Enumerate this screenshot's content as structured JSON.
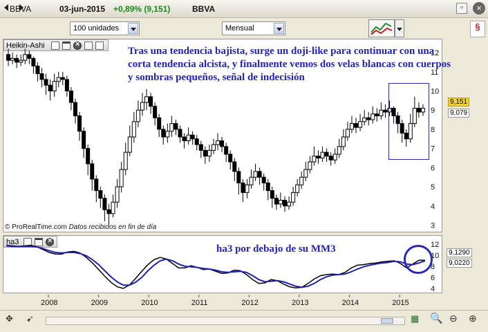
{
  "titlebar": {
    "symbol": "BBVA",
    "date": "03-jun-2015",
    "change": "+0,89% (9,151)",
    "name": "BBVA"
  },
  "toolbar": {
    "units": "100 unidades",
    "period": "Mensual"
  },
  "main_panel": {
    "title": "Heikin-Ashi",
    "annotation": "Tras una tendencia bajista, surge un doji-like para continuar con una corta tendencia alcista, y finalmente vemos dos velas blancas con cuerpos y sombras pequeños, señal de indecisión",
    "footer": "© ProRealTime.com",
    "footer_italic": "Datos recibidos en fin de día",
    "last_price": "9,151",
    "secondary_price": "9,079",
    "highlight_color": "#2a2ab4"
  },
  "lower_panel": {
    "title": "ha3",
    "annotation": "ha3 por debajo de su MM3",
    "value1": "9,1290",
    "value2": "9,0220"
  },
  "colors": {
    "up": "#ffffff",
    "down": "#000000",
    "ma": "#1f1fb0",
    "annotation": "#2222bb"
  },
  "chart_data": [
    {
      "type": "candlestick",
      "title": "Heikin-Ashi",
      "x_ticks": [
        "2008",
        "2009",
        "2010",
        "2011",
        "2012",
        "2013",
        "2014",
        "2015"
      ],
      "y_ticks": [
        "3",
        "4",
        "5",
        "6",
        "7",
        "8",
        "9",
        "10",
        "11",
        "12"
      ],
      "ylim": [
        2.8,
        12.4
      ],
      "candles": [
        [
          11.9,
          11.6,
          12.2,
          11.3
        ],
        [
          11.6,
          11.7,
          12.0,
          11.4
        ],
        [
          11.7,
          11.5,
          11.9,
          11.2
        ],
        [
          11.5,
          11.6,
          11.9,
          11.3
        ],
        [
          11.6,
          11.9,
          12.2,
          11.4
        ],
        [
          11.9,
          11.7,
          12.1,
          11.4
        ],
        [
          11.7,
          11.3,
          11.8,
          10.9
        ],
        [
          11.3,
          10.9,
          11.5,
          10.5
        ],
        [
          10.9,
          10.6,
          11.2,
          10.2
        ],
        [
          10.6,
          10.3,
          10.9,
          9.8
        ],
        [
          10.3,
          10.0,
          10.6,
          9.5
        ],
        [
          10.0,
          10.5,
          10.9,
          9.7
        ],
        [
          10.5,
          10.7,
          11.0,
          10.2
        ],
        [
          10.7,
          10.6,
          11.0,
          10.3
        ],
        [
          10.6,
          10.0,
          10.8,
          9.7
        ],
        [
          10.0,
          9.4,
          10.2,
          9.0
        ],
        [
          9.4,
          8.7,
          9.6,
          8.3
        ],
        [
          8.7,
          7.9,
          8.9,
          7.4
        ],
        [
          7.9,
          7.0,
          8.1,
          6.5
        ],
        [
          7.0,
          6.2,
          7.2,
          5.6
        ],
        [
          6.2,
          5.4,
          6.4,
          4.8
        ],
        [
          5.4,
          4.8,
          5.6,
          4.2
        ],
        [
          4.8,
          4.4,
          5.0,
          3.9
        ],
        [
          4.4,
          3.8,
          4.6,
          3.2
        ],
        [
          3.8,
          3.6,
          4.1,
          3.0
        ],
        [
          3.6,
          4.2,
          4.6,
          3.4
        ],
        [
          4.2,
          5.0,
          5.4,
          3.9
        ],
        [
          5.0,
          5.9,
          6.3,
          4.7
        ],
        [
          5.9,
          6.8,
          7.3,
          5.6
        ],
        [
          6.8,
          7.6,
          8.2,
          6.6
        ],
        [
          7.6,
          8.4,
          8.9,
          7.3
        ],
        [
          8.4,
          9.0,
          9.5,
          8.1
        ],
        [
          9.0,
          9.4,
          9.9,
          8.7
        ],
        [
          9.4,
          9.7,
          10.1,
          9.0
        ],
        [
          9.7,
          9.2,
          9.9,
          8.8
        ],
        [
          9.2,
          8.6,
          9.4,
          8.2
        ],
        [
          8.6,
          8.0,
          8.8,
          7.6
        ],
        [
          8.0,
          7.6,
          8.2,
          7.2
        ],
        [
          7.6,
          7.9,
          8.3,
          7.3
        ],
        [
          7.9,
          8.3,
          8.7,
          7.6
        ],
        [
          8.3,
          8.0,
          8.5,
          7.7
        ],
        [
          8.0,
          7.6,
          8.2,
          7.3
        ],
        [
          7.6,
          7.4,
          7.8,
          7.0
        ],
        [
          7.4,
          7.7,
          8.1,
          7.2
        ],
        [
          7.7,
          7.5,
          7.9,
          7.2
        ],
        [
          7.5,
          7.2,
          7.7,
          6.9
        ],
        [
          7.2,
          6.9,
          7.4,
          6.5
        ],
        [
          6.9,
          6.6,
          7.1,
          6.2
        ],
        [
          6.6,
          6.9,
          7.2,
          6.3
        ],
        [
          6.9,
          7.2,
          7.5,
          6.7
        ],
        [
          7.2,
          7.4,
          7.8,
          6.9
        ],
        [
          7.4,
          7.1,
          7.6,
          6.8
        ],
        [
          7.1,
          6.7,
          7.3,
          6.3
        ],
        [
          6.7,
          6.3,
          6.9,
          5.9
        ],
        [
          6.3,
          5.8,
          6.5,
          5.3
        ],
        [
          5.8,
          5.2,
          6.0,
          4.6
        ],
        [
          5.2,
          4.7,
          5.4,
          4.2
        ],
        [
          4.7,
          5.1,
          5.4,
          4.4
        ],
        [
          5.1,
          5.5,
          5.9,
          4.9
        ],
        [
          5.5,
          5.8,
          6.2,
          5.3
        ],
        [
          5.8,
          5.5,
          6.0,
          5.1
        ],
        [
          5.5,
          5.2,
          5.7,
          4.8
        ],
        [
          5.2,
          4.8,
          5.4,
          4.3
        ],
        [
          4.8,
          4.4,
          5.0,
          3.9
        ],
        [
          4.4,
          4.1,
          4.6,
          3.8
        ],
        [
          4.1,
          4.3,
          4.7,
          3.9
        ],
        [
          4.3,
          4.0,
          4.5,
          3.7
        ],
        [
          4.0,
          4.2,
          4.5,
          3.8
        ],
        [
          4.2,
          4.7,
          5.0,
          4.0
        ],
        [
          4.7,
          5.1,
          5.4,
          4.5
        ],
        [
          5.1,
          5.5,
          5.8,
          4.9
        ],
        [
          5.5,
          5.9,
          6.3,
          5.3
        ],
        [
          5.9,
          6.3,
          6.6,
          5.7
        ],
        [
          6.3,
          6.6,
          7.1,
          6.1
        ],
        [
          6.6,
          6.5,
          6.9,
          6.2
        ],
        [
          6.5,
          6.8,
          7.1,
          6.3
        ],
        [
          6.8,
          6.6,
          7.0,
          6.3
        ],
        [
          6.6,
          6.4,
          6.8,
          6.1
        ],
        [
          6.4,
          6.7,
          7.0,
          6.2
        ],
        [
          6.7,
          7.1,
          7.5,
          6.5
        ],
        [
          7.1,
          7.6,
          8.0,
          6.9
        ],
        [
          7.6,
          8.0,
          8.4,
          7.4
        ],
        [
          8.0,
          8.3,
          8.7,
          7.8
        ],
        [
          8.3,
          8.1,
          8.6,
          7.8
        ],
        [
          8.1,
          8.4,
          8.8,
          7.9
        ],
        [
          8.4,
          8.6,
          9.0,
          8.2
        ],
        [
          8.6,
          8.5,
          8.9,
          8.2
        ],
        [
          8.5,
          8.8,
          9.2,
          8.3
        ],
        [
          8.8,
          8.7,
          9.1,
          8.4
        ],
        [
          8.7,
          9.0,
          9.4,
          8.5
        ],
        [
          9.0,
          8.9,
          9.3,
          8.6
        ],
        [
          8.9,
          9.1,
          9.5,
          8.7
        ],
        [
          9.1,
          8.7,
          9.2,
          8.3
        ],
        [
          8.7,
          8.3,
          8.9,
          7.8
        ],
        [
          8.3,
          7.8,
          8.5,
          7.3
        ],
        [
          7.8,
          7.5,
          8.0,
          7.1
        ],
        [
          7.5,
          8.3,
          8.8,
          7.3
        ],
        [
          8.3,
          9.1,
          9.7,
          8.1
        ],
        [
          9.1,
          8.9,
          9.4,
          8.6
        ],
        [
          8.9,
          9.1,
          9.3,
          8.7
        ]
      ]
    },
    {
      "type": "line",
      "title": "ha3",
      "x_ticks": [
        "2008",
        "2009",
        "2010",
        "2011",
        "2012",
        "2013",
        "2014",
        "2015"
      ],
      "y_ticks": [
        "4",
        "6",
        "8",
        "10",
        "12"
      ],
      "ylim": [
        3.5,
        13
      ],
      "series": [
        {
          "values": [
            11.8,
            11.7,
            11.6,
            11.7,
            11.8,
            11.5,
            11.0,
            10.5,
            10.2,
            10.2,
            10.6,
            10.7,
            10.4,
            9.6,
            8.6,
            7.4,
            6.2,
            5.1,
            4.3,
            4.0,
            4.6,
            5.8,
            7.1,
            8.3,
            9.2,
            9.6,
            9.3,
            8.5,
            7.7,
            7.7,
            8.1,
            7.8,
            7.4,
            7.5,
            7.1,
            6.7,
            6.8,
            7.3,
            7.2,
            6.5,
            5.6,
            4.9,
            5.0,
            5.6,
            5.4,
            4.8,
            4.3,
            4.1,
            4.2,
            4.9,
            5.7,
            6.3,
            6.5,
            6.6,
            6.5,
            6.9,
            7.7,
            8.2,
            8.3,
            8.5,
            8.6,
            8.8,
            8.9,
            9.0,
            8.5,
            7.7,
            8.4,
            9.1,
            9.1
          ]
        },
        {
          "values": [
            11.7,
            11.6,
            11.6,
            11.6,
            11.6,
            11.5,
            11.2,
            10.8,
            10.5,
            10.4,
            10.5,
            10.5,
            10.3,
            9.9,
            9.2,
            8.3,
            7.2,
            6.1,
            5.2,
            4.6,
            4.6,
            5.1,
            6.0,
            7.2,
            8.2,
            9.0,
            9.3,
            9.0,
            8.4,
            8.0,
            7.9,
            7.8,
            7.6,
            7.5,
            7.3,
            7.0,
            6.9,
            7.0,
            7.1,
            6.9,
            6.3,
            5.6,
            5.2,
            5.3,
            5.4,
            5.2,
            4.8,
            4.4,
            4.2,
            4.4,
            4.9,
            5.6,
            6.1,
            6.4,
            6.5,
            6.6,
            7.0,
            7.5,
            7.9,
            8.2,
            8.4,
            8.6,
            8.7,
            8.9,
            8.8,
            8.4,
            8.3,
            8.6,
            9.0
          ]
        }
      ]
    }
  ]
}
